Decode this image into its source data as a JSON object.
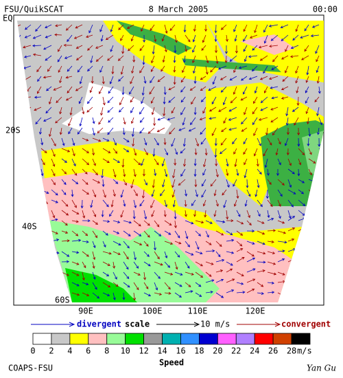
{
  "header": {
    "left": "FSU/QuikSCAT",
    "center": "8 March 2005",
    "right": "00:00"
  },
  "map": {
    "lat_labels": [
      "EQ",
      "20S",
      "40S",
      "60S"
    ],
    "lon_labels": [
      "90E",
      "100E",
      "110E",
      "120E"
    ]
  },
  "scale": {
    "divergent": "divergent",
    "scale": "scale",
    "magnitude": "10 m/s",
    "convergent": "convergent"
  },
  "colorbar": {
    "ticks": [
      0,
      2,
      4,
      6,
      8,
      10,
      12,
      14,
      16,
      18,
      20,
      22,
      24,
      26,
      28
    ],
    "units": "m/s",
    "label": "Speed",
    "colors": [
      "#ffffff",
      "#c8c8c8",
      "#ffff00",
      "#ffc0c0",
      "#98fb98",
      "#00e000",
      "#999999",
      "#00b0b0",
      "#3090ff",
      "#0000d0",
      "#ff60ff",
      "#b080ff",
      "#ff0000",
      "#d04000",
      "#000000"
    ]
  },
  "footer": {
    "left": "COAPS-FSU",
    "right": "Yan Gu"
  }
}
